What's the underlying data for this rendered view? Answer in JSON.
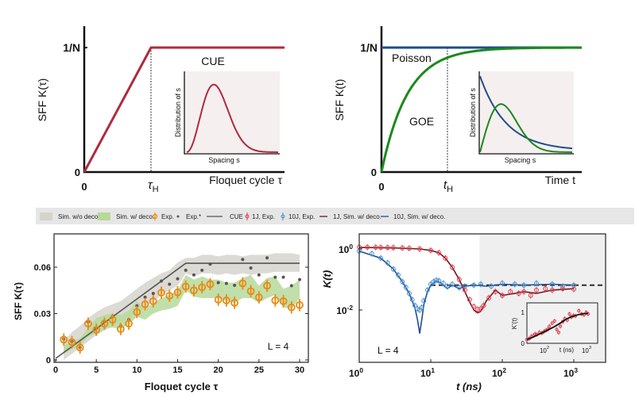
{
  "legend": {
    "items": [
      "Sim. w/o deco.",
      "Sim. w/ deco.",
      "Exp.",
      "Exp.*",
      "CUE",
      "1J, Exp.",
      "10J, Exp.",
      "1J, Sim. w/ deco.",
      "10J, Sim. w/ deco."
    ]
  },
  "colors": {
    "cue": "#b02a3e",
    "poisson": "#1f4e8c",
    "goe": "#1a8a1a",
    "orange": "#ea8a12",
    "gray_band": "#d6d3cd",
    "green_band": "#b6d99b",
    "exp_star": "#555555",
    "red_exp": "#e0404f",
    "blue_exp": "#4a90d0",
    "red_sim": "#6a1a22",
    "blue_sim": "#1f4e8c",
    "inset_bg": "#f6efef",
    "legend_bg": "#e6e6e6",
    "shade": "#efefef"
  },
  "chart_data": [
    {
      "type": "line",
      "ylabel": "SFF K(τ)",
      "xlabel": "Floquet cycle τ",
      "yticks": [
        "0",
        "1/N"
      ],
      "xticks": [
        "0",
        "τH"
      ],
      "series": [
        {
          "name": "CUE",
          "shape": "linear ramp to 1/N at τH, then constant"
        }
      ],
      "inset": {
        "ylabel": "Distribution of s",
        "xlabel": "Spacing s",
        "series": [
          "CUE"
        ]
      }
    },
    {
      "type": "line",
      "ylabel": "SFF K(t)",
      "xlabel": "Time t",
      "yticks": [
        "0",
        "1/N"
      ],
      "xticks": [
        "0",
        "tH"
      ],
      "series": [
        {
          "name": "Poisson",
          "shape": "constant at 1/N"
        },
        {
          "name": "GOE",
          "shape": "saturating rise to 1/N"
        }
      ],
      "inset": {
        "ylabel": "Distribution of s",
        "xlabel": "Spacing s",
        "series": [
          "Poisson",
          "GOE"
        ]
      }
    },
    {
      "type": "scatter",
      "ylabel": "SFF K(τ)",
      "xlabel": "Floquet cycle τ",
      "xlim": [
        0,
        31
      ],
      "ylim": [
        0,
        0.08
      ],
      "xticks": [
        "0",
        "5",
        "10",
        "15",
        "20",
        "25",
        "30"
      ],
      "yticks": [
        "0",
        "0.03",
        "0.06"
      ],
      "annotation": "L = 4",
      "tau": [
        1,
        2,
        3,
        4,
        5,
        6,
        7,
        8,
        9,
        10,
        11,
        12,
        13,
        14,
        15,
        16,
        17,
        18,
        19,
        20,
        21,
        22,
        23,
        24,
        25,
        26,
        27,
        28,
        29,
        30
      ],
      "exp": [
        0.0132,
        0.0115,
        0.008,
        0.0235,
        0.0195,
        0.0235,
        0.026,
        0.02,
        0.0235,
        0.031,
        0.036,
        0.038,
        0.0435,
        0.0415,
        0.0437,
        0.0475,
        0.045,
        0.047,
        0.049,
        0.039,
        0.0385,
        0.037,
        0.0495,
        0.0445,
        0.0405,
        0.048,
        0.0385,
        0.038,
        0.034,
        0.0355
      ],
      "exp_error": 0.004,
      "exp_star": [
        0.0135,
        0.012,
        0.008,
        0.0247,
        0.0206,
        0.025,
        0.028,
        0.022,
        0.026,
        0.035,
        0.0406,
        0.043,
        0.051,
        0.049,
        0.0525,
        0.058,
        0.055,
        0.058,
        0.062,
        0.05,
        0.0495,
        0.0483,
        0.065,
        0.0595,
        0.055,
        0.066,
        0.0535,
        0.0535,
        0.048,
        0.052
      ],
      "cue": {
        "tau": [
          0,
          16,
          30
        ],
        "value": [
          0.001,
          0.0625,
          0.0625
        ]
      },
      "sim_wo_deco": {
        "upper": [
          0.012,
          0.018,
          0.022,
          0.027,
          0.031,
          0.034,
          0.036,
          0.038,
          0.042,
          0.046,
          0.05,
          0.053,
          0.056,
          0.058,
          0.063,
          0.066,
          0.066,
          0.068,
          0.068,
          0.067,
          0.068,
          0.068,
          0.067,
          0.068,
          0.068,
          0.068,
          0.069,
          0.069,
          0.069,
          0.068
        ],
        "lower": [
          0,
          0.004,
          0.008,
          0.012,
          0.016,
          0.019,
          0.022,
          0.024,
          0.027,
          0.031,
          0.034,
          0.038,
          0.042,
          0.045,
          0.048,
          0.056,
          0.054,
          0.056,
          0.056,
          0.055,
          0.056,
          0.055,
          0.056,
          0.055,
          0.056,
          0.056,
          0.057,
          0.057,
          0.057,
          0.057
        ]
      },
      "sim_w_deco": {
        "upper": [
          0.009,
          0.012,
          0.014,
          0.021,
          0.027,
          0.029,
          0.03,
          0.029,
          0.032,
          0.038,
          0.033,
          0.037,
          0.04,
          0.042,
          0.045,
          0.055,
          0.052,
          0.054,
          0.052,
          0.052,
          0.05,
          0.05,
          0.053,
          0.055,
          0.048,
          0.053,
          0.054,
          0.046,
          0.048,
          0.052
        ],
        "lower": [
          0.004,
          0.007,
          0.009,
          0.015,
          0.017,
          0.02,
          0.021,
          0.02,
          0.023,
          0.028,
          0.026,
          0.03,
          0.032,
          0.033,
          0.035,
          0.045,
          0.041,
          0.04,
          0.04,
          0.04,
          0.038,
          0.037,
          0.04,
          0.04,
          0.037,
          0.04,
          0.042,
          0.034,
          0.033,
          0.04
        ]
      }
    },
    {
      "type": "line",
      "ylabel": "K(t)",
      "xlabel": "t (ns)",
      "xscale": "log",
      "yscale": "log",
      "xlim": [
        1,
        2500
      ],
      "ylim": [
        0.0002,
        3
      ],
      "xticks": [
        "10^0",
        "10^1",
        "10^2",
        "10^3"
      ],
      "yticks": [
        "10^0",
        "10^-2"
      ],
      "annotation": "L = 4",
      "plateau": 0.065,
      "shaded_from_t": 48,
      "exp_10J": {
        "t": [
          1,
          1.5,
          2,
          2.5,
          3,
          3.5,
          4,
          4.5,
          5,
          5.5,
          6,
          6.5,
          7,
          7.5,
          8,
          9,
          10,
          11,
          12,
          13,
          15,
          17,
          20,
          25,
          30,
          40,
          50,
          70,
          100,
          150,
          200,
          300,
          500,
          700,
          1000
        ],
        "K": [
          0.85,
          0.7,
          0.5,
          0.35,
          0.22,
          0.14,
          0.085,
          0.055,
          0.035,
          0.022,
          0.014,
          0.011,
          0.01,
          0.012,
          0.02,
          0.045,
          0.07,
          0.085,
          0.095,
          0.09,
          0.075,
          0.06,
          0.07,
          0.055,
          0.06,
          0.065,
          0.07,
          0.06,
          0.075,
          0.07,
          0.065,
          0.075,
          0.07,
          0.06,
          0.065
        ]
      },
      "sim_10J": {
        "t": [
          1,
          2,
          3,
          4,
          5,
          6,
          6.5,
          7,
          7.5,
          8,
          9,
          10,
          12,
          14,
          17,
          20,
          25,
          30,
          40,
          60,
          100,
          200,
          500,
          1000
        ],
        "K": [
          0.85,
          0.5,
          0.22,
          0.085,
          0.035,
          0.012,
          0.005,
          0.0017,
          0.005,
          0.015,
          0.04,
          0.065,
          0.09,
          0.075,
          0.05,
          0.065,
          0.05,
          0.06,
          0.065,
          0.06,
          0.07,
          0.065,
          0.07,
          0.065
        ]
      },
      "exp_1J": {
        "t": [
          1,
          1.3,
          1.7,
          2,
          2.5,
          3,
          4,
          5,
          7,
          10,
          13,
          16,
          20,
          25,
          30,
          35,
          40,
          45,
          50,
          55,
          65,
          80,
          100,
          130,
          170,
          200,
          250,
          300,
          400,
          500,
          700,
          1000
        ],
        "K": [
          1.15,
          1.14,
          1.13,
          1.12,
          1.11,
          1.1,
          1.08,
          1.05,
          1.0,
          0.9,
          0.75,
          0.5,
          0.25,
          0.1,
          0.045,
          0.022,
          0.013,
          0.0105,
          0.011,
          0.014,
          0.025,
          0.04,
          0.03,
          0.04,
          0.035,
          0.04,
          0.03,
          0.045,
          0.05,
          0.045,
          0.05,
          0.048
        ]
      },
      "sim_1J": {
        "t": [
          1,
          3,
          7,
          10,
          13,
          16,
          20,
          25,
          30,
          35,
          40,
          45,
          50,
          60,
          80,
          100,
          150,
          200,
          300,
          500,
          1000
        ],
        "K": [
          1.12,
          1.08,
          1.0,
          0.9,
          0.75,
          0.5,
          0.25,
          0.1,
          0.04,
          0.018,
          0.01,
          0.008,
          0.009,
          0.02,
          0.045,
          0.03,
          0.035,
          0.04,
          0.035,
          0.045,
          0.05
        ]
      },
      "inset": {
        "ylabel": "K'(t)",
        "xlabel": "t (ns)",
        "xticks": [
          "10^2",
          "10^3"
        ],
        "yticks": [
          "0",
          "1"
        ],
        "exp_1J": {
          "t": [
            35,
            40,
            45,
            50,
            55,
            60,
            70,
            80,
            90,
            100,
            110,
            120,
            140,
            160,
            180,
            200,
            220,
            250,
            280,
            320,
            360,
            400,
            450,
            500,
            600,
            700,
            800,
            900,
            1000
          ],
          "K": [
            0.12,
            0.15,
            0.22,
            0.25,
            0.3,
            0.28,
            0.35,
            0.33,
            0.38,
            0.42,
            0.45,
            0.55,
            0.65,
            0.72,
            0.45,
            0.35,
            0.55,
            0.7,
            0.8,
            0.75,
            0.95,
            0.85,
            0.9,
            0.88,
            1.05,
            0.95,
            0.92,
            1.0,
            0.95
          ]
        },
        "sim_1J": {
          "t": [
            35,
            50,
            70,
            100,
            150,
            200,
            300,
            400,
            600,
            800,
            1000
          ],
          "K": [
            0.12,
            0.2,
            0.3,
            0.4,
            0.52,
            0.62,
            0.78,
            0.86,
            0.93,
            0.96,
            0.97
          ]
        }
      }
    }
  ]
}
